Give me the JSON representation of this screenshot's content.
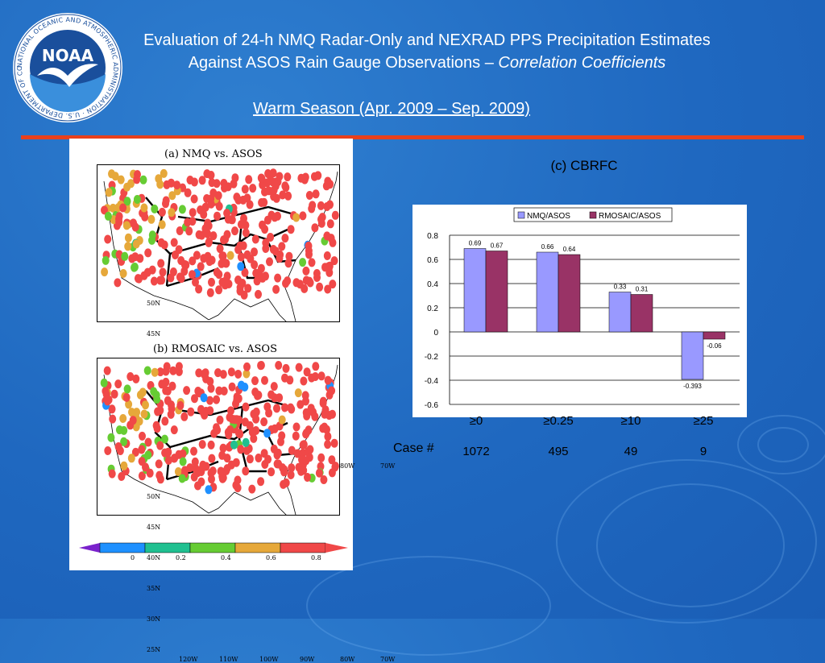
{
  "slide": {
    "title_line1": "Evaluation of 24-h NMQ Radar-Only and NEXRAD PPS Precipitation Estimates",
    "title_line2_plain": "Against ASOS Rain Gauge Observations – ",
    "title_line2_italic": "Correlation Coefficients",
    "subtitle": "Warm Season (Apr. 2009 – Sep. 2009)",
    "logo": {
      "text": "NOAA",
      "ring_text": "NATIONAL OCEANIC AND ATMOSPHERIC ADMINISTRATION · U.S. DEPARTMENT OF COMMERCE ·",
      "colors": {
        "ring": "#ffffff",
        "sky": "#1a4f9c",
        "bird": "#ffffff",
        "water": "#3a8fdc"
      }
    },
    "accent_rule_color": "#e8401c"
  },
  "maps": {
    "panel_a_title": "(a) NMQ vs. ASOS",
    "panel_b_title": "(b) RMOSAIC vs. ASOS",
    "lat_labels": [
      "50N",
      "45N",
      "40N",
      "35N",
      "30N",
      "25N"
    ],
    "lon_labels": [
      "120W",
      "110W",
      "100W",
      "90W",
      "80W",
      "70W"
    ],
    "colorbar": {
      "labels": [
        "0",
        "0.2",
        "0.4",
        "0.6",
        "0.8"
      ],
      "colors": [
        "#7a22cc",
        "#1e90ff",
        "#20c090",
        "#66cc33",
        "#e6a83a",
        "#f04848"
      ]
    },
    "dot_color": "#f04848"
  },
  "chart_data": {
    "type": "bar",
    "title": "(c) CBRFC",
    "categories": [
      "≥0",
      "≥0.25",
      "≥10",
      "≥25"
    ],
    "series": [
      {
        "name": "NMQ/ASOS",
        "values": [
          0.69,
          0.66,
          0.33,
          -0.393
        ],
        "labels": [
          "0.69",
          "0.66",
          "0.33",
          "-0.393"
        ],
        "color": "#9999ff"
      },
      {
        "name": "RMOSAIC/ASOS",
        "values": [
          0.67,
          0.64,
          0.31,
          -0.06
        ],
        "labels": [
          "0.67",
          "0.64",
          "0.31",
          "-0.06"
        ],
        "color": "#993366"
      }
    ],
    "ylim": [
      -0.6,
      0.8
    ],
    "yticks": [
      0.8,
      0.6,
      0.4,
      0.2,
      0,
      -0.2,
      -0.4,
      -0.6
    ],
    "ytick_labels": [
      "0.8",
      "0.6",
      "0.4",
      "0.2",
      "0",
      "-0.2",
      "-0.4",
      "-0.6"
    ],
    "grid": true,
    "legend_position": "top"
  },
  "cases": {
    "label": "Case #",
    "values": [
      "1072",
      "495",
      "49",
      "9"
    ]
  }
}
